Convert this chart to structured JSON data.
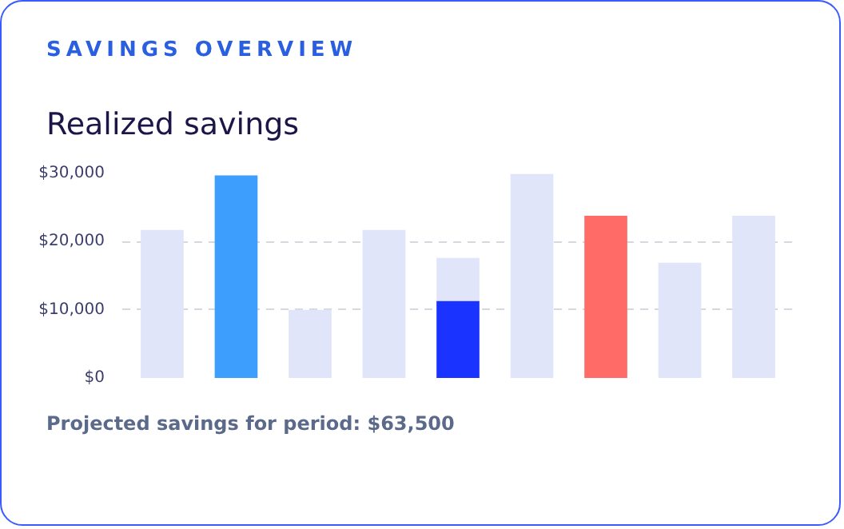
{
  "chart_data": {
    "type": "bar",
    "title": "SAVINGS OVERVIEW",
    "subtitle": "Realized savings",
    "categories": [
      null,
      null,
      null,
      null,
      null,
      null,
      null,
      null,
      null
    ],
    "stacked": true,
    "series": [
      {
        "colors": [
          "#e1e5fa",
          "#3d9efd",
          "#e1e5fa",
          "#e1e5fa",
          "#1a33ff",
          "#e1e5fa",
          "#ff6b66",
          "#e1e5fa",
          "#e1e5fa"
        ],
        "values": [
          21700,
          29700,
          10000,
          21700,
          11300,
          29900,
          23800,
          16900,
          23800
        ]
      },
      {
        "color": "#e1e5fa",
        "values": [
          null,
          null,
          null,
          null,
          6300,
          null,
          null,
          null,
          null
        ]
      }
    ],
    "ylim": [
      0,
      30000
    ],
    "yticks": [
      {
        "value": 0,
        "label": "$0"
      },
      {
        "value": 10000,
        "label": "$10,000"
      },
      {
        "value": 20000,
        "label": "$20,000"
      },
      {
        "value": 30000,
        "label": "$30,000"
      }
    ],
    "grid": "y",
    "tick_labels": "y",
    "annotations": [
      "Projected savings for period: $63,500"
    ]
  }
}
